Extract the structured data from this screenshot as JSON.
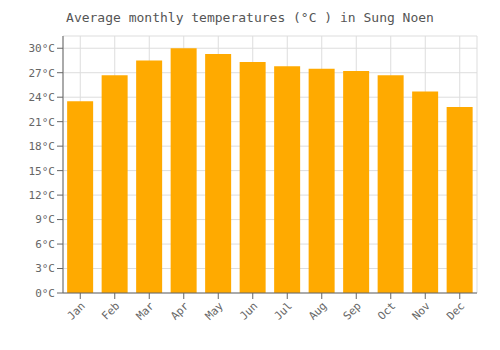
{
  "chart_data": {
    "type": "bar",
    "title": "Average monthly temperatures (°C ) in Sung Noen",
    "categories": [
      "Jan",
      "Feb",
      "Mar",
      "Apr",
      "May",
      "Jun",
      "Jul",
      "Aug",
      "Sep",
      "Oct",
      "Nov",
      "Dec"
    ],
    "values": [
      23.5,
      26.7,
      28.5,
      30.0,
      29.3,
      28.3,
      27.8,
      27.5,
      27.2,
      26.7,
      24.7,
      22.8
    ],
    "color": "#FFAA00",
    "ylim": [
      0,
      31.5
    ],
    "yticks": [
      {
        "value": 0,
        "label": "0°C"
      },
      {
        "value": 3,
        "label": "3°C"
      },
      {
        "value": 6,
        "label": "6°C"
      },
      {
        "value": 9,
        "label": "9°C"
      },
      {
        "value": 12,
        "label": "12°C"
      },
      {
        "value": 15,
        "label": "15°C"
      },
      {
        "value": 18,
        "label": "18°C"
      },
      {
        "value": 21,
        "label": "21°C"
      },
      {
        "value": 24,
        "label": "24°C"
      },
      {
        "value": 27,
        "label": "27°C"
      },
      {
        "value": 30,
        "label": "30°C"
      }
    ],
    "grid": true
  }
}
